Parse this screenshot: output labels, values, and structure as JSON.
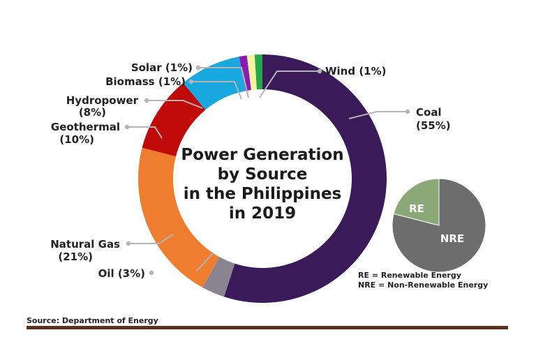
{
  "chart_data": [
    {
      "type": "pie",
      "variant": "donut",
      "title_lines": [
        "Power Generation",
        "by Source",
        "in the Philippines",
        "in 2019"
      ],
      "slices": [
        {
          "name": "Coal",
          "value": 55,
          "label": "Coal",
          "pct_label": "(55%)",
          "color": "#3b1a5a"
        },
        {
          "name": "Oil",
          "value": 3,
          "label": "Oil (3%)",
          "color": "#8a8390"
        },
        {
          "name": "Natural Gas",
          "value": 21,
          "label": "Natural Gas",
          "pct_label": "(21%)",
          "color": "#ee7d2f"
        },
        {
          "name": "Geothermal",
          "value": 10,
          "label": "Geothermal",
          "pct_label": "(10%)",
          "color": "#c00a0a"
        },
        {
          "name": "Hydropower",
          "value": 8,
          "label": "Hydropower",
          "pct_label": "(8%)",
          "color": "#1aa8e0"
        },
        {
          "name": "Biomass",
          "value": 1,
          "label": "Biomass (1%)",
          "color": "#8a1bb0"
        },
        {
          "name": "Solar",
          "value": 1,
          "label": "Solar (1%)",
          "color": "#f6f3a0"
        },
        {
          "name": "Wind",
          "value": 1,
          "label": "Wind (1%)",
          "color": "#27a84a"
        }
      ]
    },
    {
      "type": "pie",
      "slices": [
        {
          "name": "RE",
          "value": 21,
          "label": "RE",
          "color": "#8aa878"
        },
        {
          "name": "NRE",
          "value": 79,
          "label": "NRE",
          "color": "#6d6d6d"
        }
      ]
    }
  ],
  "legend": {
    "re_note": "RE = Renewable Energy",
    "nre_note": "NRE = Non-Renewable Energy"
  },
  "source": "Source: Department of Energy",
  "colors": {
    "rule": "#5a2f1e",
    "leader": "#b5b5b5"
  }
}
